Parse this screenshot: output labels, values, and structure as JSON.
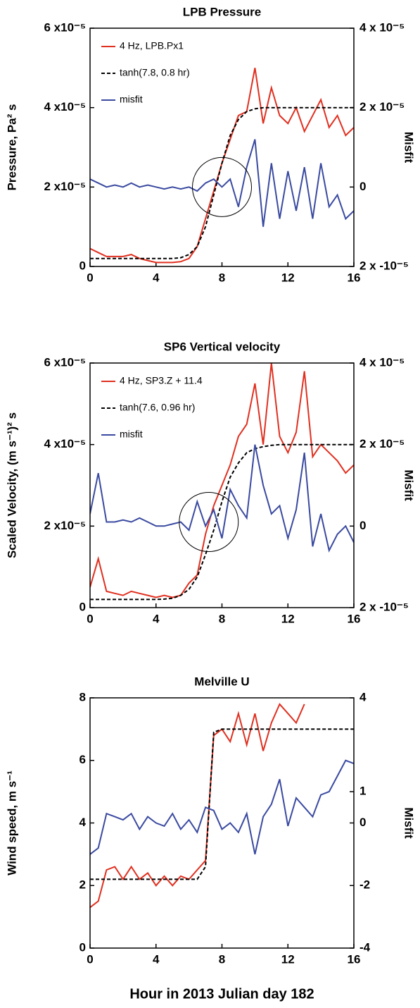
{
  "chart_data": [
    {
      "type": "line",
      "title": "LPB Pressure",
      "ylabel": "Pressure, Pa² s",
      "y2label": "Misfit",
      "legend": "upper left",
      "xlim": [
        0,
        16
      ],
      "xticks": [
        0,
        4,
        8,
        12,
        16
      ],
      "ylim": [
        0,
        6e-05
      ],
      "yticks": [
        0,
        {
          "value": 2e-05,
          "label": "2 x10⁻⁵"
        },
        {
          "value": 4e-05,
          "label": "4 x10⁻⁵"
        },
        {
          "value": 6e-05,
          "label": "6 x10⁻⁵"
        }
      ],
      "y2lim": [
        -2e-05,
        4e-05
      ],
      "y2ticks": [
        {
          "value": -2e-05,
          "label": "2 x -10⁻⁵"
        },
        0,
        {
          "value": 2e-05,
          "label": "2 x 10⁻⁵"
        },
        {
          "value": 4e-05,
          "label": "4 x 10⁻⁵"
        }
      ],
      "x": [
        0,
        0.5,
        1,
        1.5,
        2,
        2.5,
        3,
        3.5,
        4,
        4.5,
        5,
        5.5,
        6,
        6.5,
        7,
        7.5,
        8,
        8.5,
        9,
        9.5,
        10,
        10.5,
        11,
        11.5,
        12,
        12.5,
        13,
        13.5,
        14,
        14.5,
        15,
        15.5,
        16
      ],
      "series": [
        {
          "name": "4 Hz, LPB.Px1",
          "color": "#e03020",
          "style": "solid",
          "values": [
            4.5e-06,
            3.5e-06,
            2.5e-06,
            2.5e-06,
            2.5e-06,
            3e-06,
            2e-06,
            1.5e-06,
            1e-06,
            1e-06,
            1e-06,
            1.2e-06,
            2e-06,
            5e-06,
            1.2e-05,
            1.9e-05,
            2.6e-05,
            3.2e-05,
            3.8e-05,
            3.9e-05,
            5e-05,
            3.6e-05,
            4.5e-05,
            3.8e-05,
            3.6e-05,
            4e-05,
            3.4e-05,
            3.8e-05,
            4.2e-05,
            3.5e-05,
            3.8e-05,
            3.3e-05,
            3.5e-05
          ]
        },
        {
          "name": "tanh(7.8, 0.8 hr)",
          "color": "#000000",
          "style": "dashed",
          "values": [
            2e-06,
            2e-06,
            2e-06,
            2e-06,
            2e-06,
            2e-06,
            2e-06,
            2e-06,
            2e-06,
            2e-06,
            2e-06,
            2.2e-06,
            3e-06,
            5e-06,
            1e-05,
            1.8e-05,
            2.6e-05,
            3.3e-05,
            3.7e-05,
            3.9e-05,
            3.97e-05,
            4e-05,
            4e-05,
            4e-05,
            4e-05,
            4e-05,
            4e-05,
            4e-05,
            4e-05,
            4e-05,
            4e-05,
            4e-05,
            4e-05
          ]
        },
        {
          "name": "misfit",
          "color": "#3a4aa0",
          "style": "solid",
          "axis": "y2",
          "values": [
            2e-06,
            1e-06,
            0,
            5e-07,
            0,
            1e-06,
            0,
            5e-07,
            0,
            -5e-07,
            0,
            -5e-07,
            0,
            -1e-06,
            1e-06,
            2e-06,
            0,
            2e-06,
            -5e-06,
            5e-06,
            1.2e-05,
            -1e-05,
            6e-06,
            -8e-06,
            4e-06,
            -6e-06,
            5e-06,
            -8e-06,
            6e-06,
            -5e-06,
            -2e-06,
            -8e-06,
            -6e-06
          ]
        }
      ]
    },
    {
      "type": "line",
      "title": "SP6  Vertical velocity",
      "ylabel": "Scaled Velocity, (m s⁻¹)² s",
      "y2label": "Misfit",
      "legend": "upper left",
      "xlim": [
        0,
        16
      ],
      "xticks": [
        0,
        4,
        8,
        12,
        16
      ],
      "ylim": [
        0,
        6e-05
      ],
      "yticks": [
        0,
        {
          "value": 2e-05,
          "label": "2 x10⁻⁵"
        },
        {
          "value": 4e-05,
          "label": "4 x10⁻⁵"
        },
        {
          "value": 6e-05,
          "label": "6 x10⁻⁵"
        }
      ],
      "y2lim": [
        -2e-05,
        4e-05
      ],
      "y2ticks": [
        {
          "value": -2e-05,
          "label": "2 x -10⁻⁵"
        },
        0,
        {
          "value": 2e-05,
          "label": "2 x 10⁻⁵"
        },
        {
          "value": 4e-05,
          "label": "4 x 10⁻⁵"
        }
      ],
      "x": [
        0,
        0.5,
        1,
        1.5,
        2,
        2.5,
        3,
        3.5,
        4,
        4.5,
        5,
        5.5,
        6,
        6.5,
        7,
        7.5,
        8,
        8.5,
        9,
        9.5,
        10,
        10.5,
        11,
        11.5,
        12,
        12.5,
        13,
        13.5,
        14,
        14.5,
        15,
        15.5,
        16
      ],
      "series": [
        {
          "name": "4 Hz, SP3.Z + 11.4",
          "color": "#e03020",
          "style": "solid",
          "values": [
            5e-06,
            1.2e-05,
            4e-06,
            3.5e-06,
            3e-06,
            4e-06,
            3.5e-06,
            3e-06,
            2.5e-06,
            3e-06,
            2.5e-06,
            3e-06,
            6e-06,
            8e-06,
            1.8e-05,
            2.5e-05,
            3e-05,
            3.5e-05,
            4.2e-05,
            4.5e-05,
            5.5e-05,
            4e-05,
            6e-05,
            4.2e-05,
            3.8e-05,
            4.3e-05,
            5.8e-05,
            3.7e-05,
            4e-05,
            3.8e-05,
            3.6e-05,
            3.3e-05,
            3.5e-05
          ]
        },
        {
          "name": "tanh(7.6, 0.96 hr)",
          "color": "#000000",
          "style": "dashed",
          "values": [
            2e-06,
            2e-06,
            2e-06,
            2e-06,
            2e-06,
            2e-06,
            2e-06,
            2e-06,
            2e-06,
            2.1e-06,
            2.3e-06,
            3e-06,
            4.5e-06,
            7.5e-06,
            1.3e-05,
            1.9e-05,
            2.6e-05,
            3.2e-05,
            3.55e-05,
            3.8e-05,
            3.9e-05,
            3.95e-05,
            3.98e-05,
            4e-05,
            4e-05,
            4e-05,
            4e-05,
            4e-05,
            4e-05,
            4e-05,
            4e-05,
            4e-05,
            4e-05
          ]
        },
        {
          "name": "misfit",
          "color": "#3a4aa0",
          "style": "solid",
          "axis": "y2",
          "values": [
            3e-06,
            1.3e-05,
            1e-06,
            1e-06,
            1.5e-06,
            1e-06,
            2e-06,
            1e-06,
            0,
            0,
            5e-07,
            1e-06,
            -1e-06,
            6e-06,
            0,
            4e-06,
            -3e-06,
            9e-06,
            5e-06,
            2e-06,
            2e-05,
            1e-05,
            3e-06,
            5e-06,
            -3e-06,
            4e-06,
            1.8e-05,
            -5e-06,
            3e-06,
            -6e-06,
            -2e-06,
            0,
            -4e-06
          ]
        }
      ]
    },
    {
      "type": "line",
      "title": "Melville U",
      "ylabel": "Wind speed, m s⁻¹",
      "y2label": "Misfit",
      "xlabel": "Hour in 2013 Julian day 182",
      "xlim": [
        0,
        16
      ],
      "xticks": [
        0,
        4,
        8,
        12,
        16
      ],
      "ylim": [
        0,
        8
      ],
      "yticks": [
        0,
        2,
        4,
        6,
        8
      ],
      "y2lim": [
        -4,
        4
      ],
      "y2ticks": [
        -4,
        -2,
        0,
        1,
        4
      ],
      "x": [
        0,
        0.5,
        1,
        1.5,
        2,
        2.5,
        3,
        3.5,
        4,
        4.5,
        5,
        5.5,
        6,
        6.5,
        7,
        7.5,
        8,
        8.5,
        9,
        9.5,
        10,
        10.5,
        11,
        11.5,
        12,
        12.5,
        13,
        13.5,
        14,
        14.5,
        15,
        15.5,
        16
      ],
      "series": [
        {
          "color": "#e03020",
          "style": "solid",
          "values": [
            1.3,
            1.5,
            2.5,
            2.6,
            2.2,
            2.6,
            2.2,
            2.4,
            2.0,
            2.3,
            2.0,
            2.3,
            2.2,
            2.5,
            2.8,
            6.8,
            7.0,
            6.6,
            7.5,
            6.5,
            7.5,
            6.3,
            7.2,
            7.8,
            7.5,
            7.2,
            7.8,
            null,
            null,
            null,
            null,
            null,
            null
          ]
        },
        {
          "color": "#000000",
          "style": "dashed",
          "values": [
            2.2,
            2.2,
            2.2,
            2.2,
            2.2,
            2.2,
            2.2,
            2.2,
            2.2,
            2.2,
            2.2,
            2.2,
            2.2,
            2.2,
            2.6,
            6.9,
            7.0,
            7.0,
            7.0,
            7.0,
            7.0,
            7.0,
            7.0,
            7.0,
            7.0,
            7.0,
            7.0,
            7.0,
            7.0,
            7.0,
            7.0,
            7.0,
            7.0
          ]
        },
        {
          "color": "#3a4aa0",
          "style": "solid",
          "axis": "y2",
          "values": [
            -1,
            -0.8,
            0.3,
            0.2,
            0.1,
            0.3,
            -0.2,
            0.2,
            0,
            -0.1,
            0.3,
            -0.2,
            0.1,
            -0.3,
            0.5,
            0.4,
            -0.2,
            0,
            -0.3,
            0.3,
            -1,
            0.2,
            0.6,
            1.4,
            -0.1,
            0.8,
            0.5,
            0.2,
            0.9,
            1.0,
            1.5,
            2.0,
            1.9
          ]
        }
      ]
    }
  ]
}
